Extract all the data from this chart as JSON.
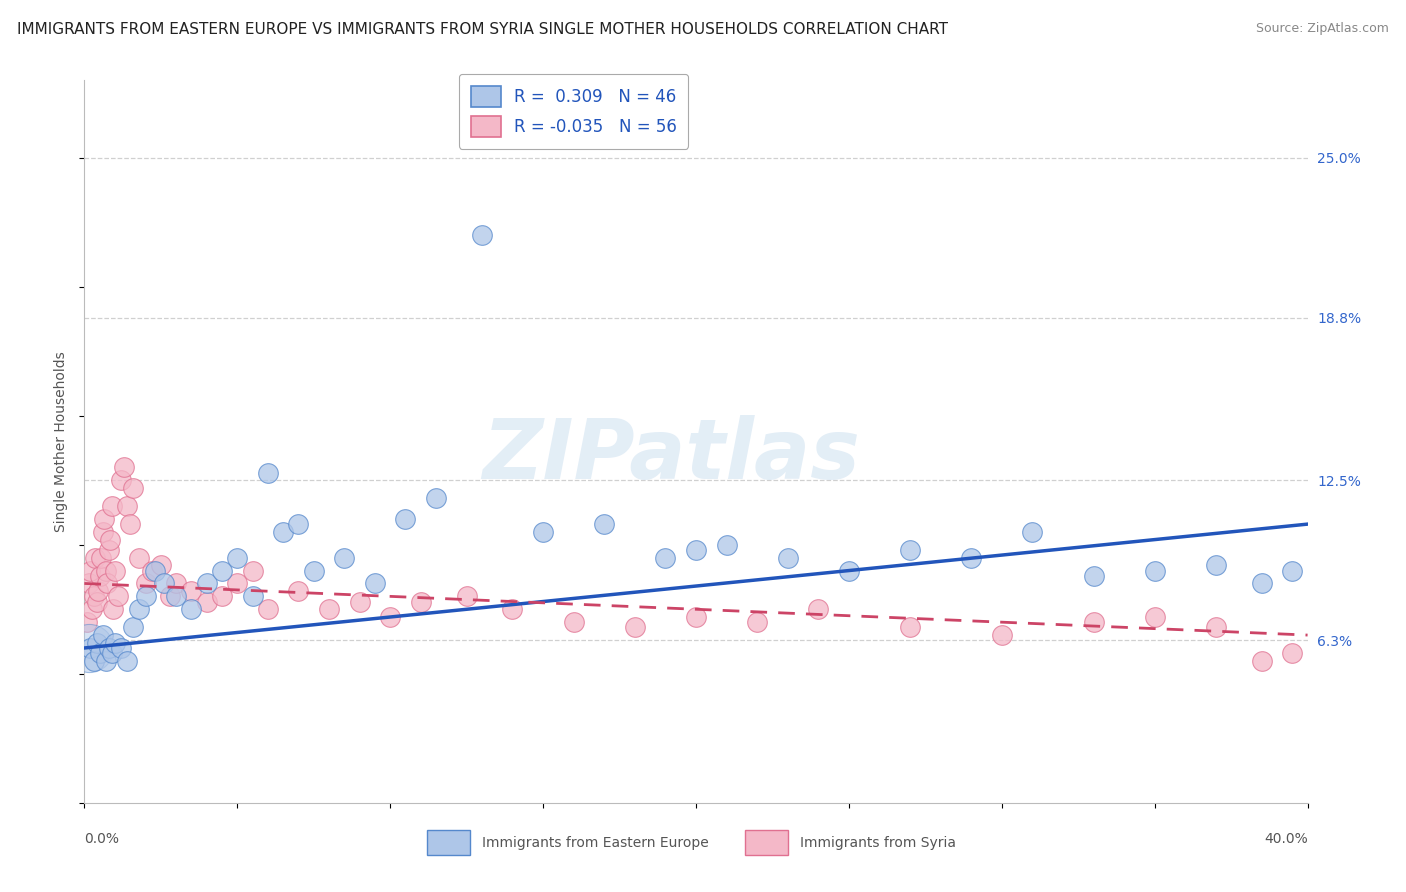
{
  "title": "IMMIGRANTS FROM EASTERN EUROPE VS IMMIGRANTS FROM SYRIA SINGLE MOTHER HOUSEHOLDS CORRELATION CHART",
  "source": "Source: ZipAtlas.com",
  "ylabel": "Single Mother Households",
  "xlim": [
    0.0,
    40.0
  ],
  "ylim": [
    0.0,
    28.0
  ],
  "yticks": [
    6.3,
    12.5,
    18.8,
    25.0
  ],
  "ytick_labels": [
    "6.3%",
    "12.5%",
    "18.8%",
    "25.0%"
  ],
  "legend_entries": [
    {
      "label": "R =  0.309   N = 46",
      "color": "#aec6e8"
    },
    {
      "label": "R = -0.035   N = 56",
      "color": "#f4b8c8"
    }
  ],
  "series_blue": {
    "name": "Immigrants from Eastern Europe",
    "color": "#aec6e8",
    "edge_color": "#5588cc",
    "line_color": "#2255bb",
    "R": 0.309,
    "N": 46,
    "x": [
      0.2,
      0.3,
      0.4,
      0.5,
      0.6,
      0.7,
      0.8,
      0.9,
      1.0,
      1.2,
      1.4,
      1.6,
      1.8,
      2.0,
      2.3,
      2.6,
      3.0,
      3.5,
      4.0,
      4.5,
      5.0,
      5.5,
      6.0,
      6.5,
      7.0,
      7.5,
      8.5,
      9.5,
      10.5,
      11.5,
      13.0,
      15.0,
      17.0,
      19.0,
      20.0,
      21.0,
      23.0,
      25.0,
      27.0,
      29.0,
      31.0,
      33.0,
      35.0,
      37.0,
      38.5,
      39.5
    ],
    "y": [
      6.0,
      5.5,
      6.2,
      5.8,
      6.5,
      5.5,
      6.0,
      5.8,
      6.2,
      6.0,
      5.5,
      6.8,
      7.5,
      8.0,
      9.0,
      8.5,
      8.0,
      7.5,
      8.5,
      9.0,
      9.5,
      8.0,
      12.8,
      10.5,
      10.8,
      9.0,
      9.5,
      8.5,
      11.0,
      11.8,
      22.0,
      10.5,
      10.8,
      9.5,
      9.8,
      10.0,
      9.5,
      9.0,
      9.8,
      9.5,
      10.5,
      8.8,
      9.0,
      9.2,
      8.5,
      9.0
    ]
  },
  "series_pink": {
    "name": "Immigrants from Syria",
    "color": "#f4b8c8",
    "edge_color": "#e07090",
    "line_color": "#cc4466",
    "R": -0.035,
    "N": 56,
    "x": [
      0.1,
      0.15,
      0.2,
      0.25,
      0.3,
      0.35,
      0.4,
      0.45,
      0.5,
      0.55,
      0.6,
      0.65,
      0.7,
      0.75,
      0.8,
      0.85,
      0.9,
      0.95,
      1.0,
      1.1,
      1.2,
      1.3,
      1.4,
      1.5,
      1.6,
      1.8,
      2.0,
      2.2,
      2.5,
      2.8,
      3.0,
      3.5,
      4.0,
      4.5,
      5.0,
      5.5,
      6.0,
      7.0,
      8.0,
      9.0,
      10.0,
      11.0,
      12.5,
      14.0,
      16.0,
      18.0,
      20.0,
      22.0,
      24.0,
      27.0,
      30.0,
      33.0,
      35.0,
      37.0,
      38.5,
      39.5
    ],
    "y": [
      7.0,
      8.5,
      9.0,
      7.5,
      8.0,
      9.5,
      7.8,
      8.2,
      8.8,
      9.5,
      10.5,
      11.0,
      9.0,
      8.5,
      9.8,
      10.2,
      11.5,
      7.5,
      9.0,
      8.0,
      12.5,
      13.0,
      11.5,
      10.8,
      12.2,
      9.5,
      8.5,
      9.0,
      9.2,
      8.0,
      8.5,
      8.2,
      7.8,
      8.0,
      8.5,
      9.0,
      7.5,
      8.2,
      7.5,
      7.8,
      7.2,
      7.8,
      8.0,
      7.5,
      7.0,
      6.8,
      7.2,
      7.0,
      7.5,
      6.8,
      6.5,
      7.0,
      7.2,
      6.8,
      5.5,
      5.8
    ]
  },
  "watermark": "ZIPatlas",
  "background_color": "#ffffff",
  "grid_color": "#d0d0d0",
  "title_fontsize": 11,
  "axis_label_fontsize": 10,
  "tick_fontsize": 10,
  "blue_trend": [
    6.0,
    10.8
  ],
  "pink_trend": [
    8.5,
    6.5
  ]
}
